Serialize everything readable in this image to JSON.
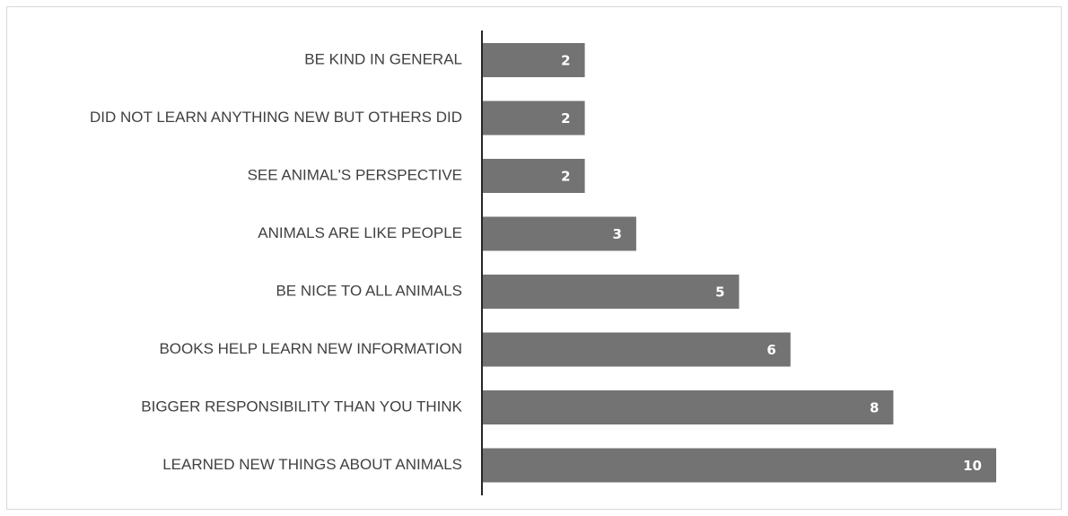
{
  "chart_data": {
    "type": "bar",
    "orientation": "horizontal",
    "title": "",
    "xlabel": "",
    "ylabel": "",
    "categories": [
      "BE KIND IN GENERAL",
      "DID NOT LEARN ANYTHING NEW BUT OTHERS DID",
      "SEE ANIMAL'S PERSPECTIVE",
      "ANIMALS ARE LIKE PEOPLE",
      "BE NICE TO ALL ANIMALS",
      "BOOKS HELP LEARN NEW INFORMATION",
      "BIGGER RESPONSIBILITY THAN YOU THINK",
      "LEARNED NEW THINGS ABOUT ANIMALS"
    ],
    "values": [
      2,
      2,
      2,
      3,
      5,
      6,
      8,
      10
    ],
    "data_labels": [
      "2",
      "2",
      "2",
      "3",
      "5",
      "6",
      "8",
      "10"
    ],
    "xlim": [
      0,
      10
    ],
    "grid": false,
    "legend": "none",
    "bar_color": "#737373",
    "axis_color": "#262626",
    "label_color": "#404040",
    "data_label_color": "#ffffff"
  }
}
